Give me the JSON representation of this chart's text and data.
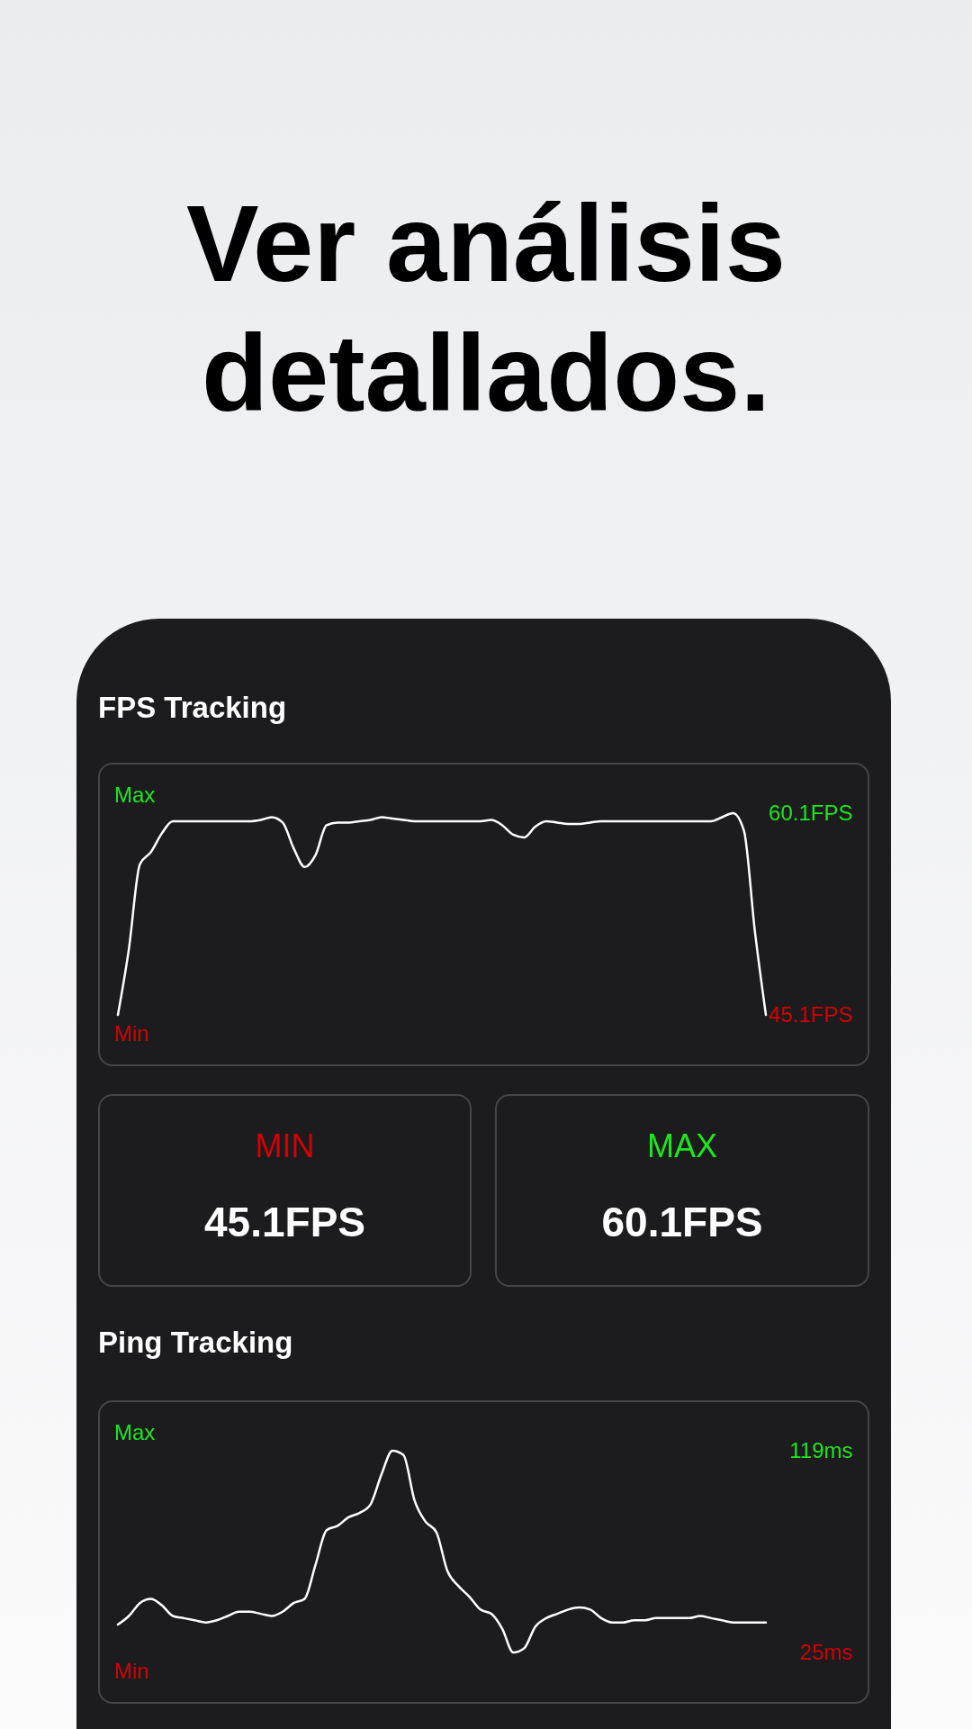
{
  "chart_data": [
    {
      "type": "other",
      "title": "Ver análisis detallados."
    },
    {
      "type": "line",
      "title": "FPS Tracking",
      "categories": [
        null,
        null,
        null,
        null,
        null,
        null,
        null,
        null,
        null,
        null,
        null,
        null,
        null,
        null,
        null,
        null,
        null,
        null,
        null,
        null,
        null,
        null,
        null,
        null,
        null,
        null,
        null,
        null,
        null,
        null,
        null,
        null,
        null,
        null,
        null,
        null,
        null,
        null,
        null,
        null,
        null,
        null,
        null,
        null,
        null,
        null,
        null,
        null,
        null,
        null,
        null,
        null,
        null,
        null,
        null,
        null,
        null,
        null,
        null,
        null
      ],
      "series": [
        {
          "color": "#ffffff",
          "values": [
            45.1,
            50.0,
            56.3,
            57.2,
            58.6,
            59.5,
            59.5,
            59.5,
            59.5,
            59.5,
            59.5,
            59.5,
            59.5,
            59.6,
            59.8,
            59.4,
            57.5,
            56.1,
            57.0,
            59.2,
            59.4,
            59.4,
            59.5,
            59.6,
            59.8,
            59.7,
            59.6,
            59.5,
            59.5,
            59.5,
            59.5,
            59.5,
            59.5,
            59.5,
            59.6,
            59.2,
            58.5,
            58.3,
            59.1,
            59.5,
            59.4,
            59.3,
            59.3,
            59.4,
            59.5,
            59.5,
            59.5,
            59.5,
            59.5,
            59.5,
            59.5,
            59.5,
            59.5,
            59.5,
            59.5,
            59.8,
            60.1,
            58.8,
            51.3,
            45.1
          ]
        }
      ],
      "ylim": [
        45.1,
        60.1
      ],
      "yticks": [
        {
          "value": 60.1,
          "label": "60.1FPS"
        },
        {
          "value": 45.1,
          "label": "45.1FPS"
        }
      ],
      "annotations": [
        "Max",
        "Min"
      ],
      "tick_labels": "y"
    },
    {
      "type": "other",
      "title": "MIN",
      "annotations": [
        "45.1FPS"
      ]
    },
    {
      "type": "other",
      "title": "MAX",
      "annotations": [
        "60.1FPS"
      ]
    },
    {
      "type": "line",
      "title": "Ping Tracking",
      "categories": [
        null,
        null,
        null,
        null,
        null,
        null,
        null,
        null,
        null,
        null,
        null,
        null,
        null,
        null,
        null,
        null,
        null,
        null,
        null,
        null,
        null,
        null,
        null,
        null,
        null,
        null,
        null,
        null,
        null,
        null,
        null,
        null,
        null,
        null,
        null,
        null,
        null,
        null,
        null,
        null,
        null,
        null,
        null,
        null,
        null,
        null,
        null,
        null,
        null,
        null,
        null,
        null,
        null,
        null,
        null,
        null,
        null,
        null,
        null,
        null
      ],
      "series": [
        {
          "color": "#ffffff",
          "values": [
            38,
            42,
            48,
            50,
            47,
            42,
            41,
            40,
            39,
            40,
            42,
            44,
            44,
            43,
            42,
            44,
            48,
            50,
            66,
            82,
            84,
            88,
            90,
            94,
            108,
            119,
            117,
            96,
            86,
            81,
            63,
            56,
            51,
            45,
            43,
            36,
            25,
            27,
            37,
            41,
            43,
            45,
            46,
            45,
            41,
            39,
            39,
            40,
            40,
            41,
            41,
            41,
            41,
            42,
            41,
            40,
            39,
            39,
            39,
            39
          ]
        }
      ],
      "ylim": [
        25,
        119
      ],
      "yticks": [
        {
          "value": 119,
          "label": "119ms"
        },
        {
          "value": 25,
          "label": "25ms"
        }
      ],
      "annotations": [
        "Max",
        "Min"
      ],
      "tick_labels": "y"
    }
  ]
}
